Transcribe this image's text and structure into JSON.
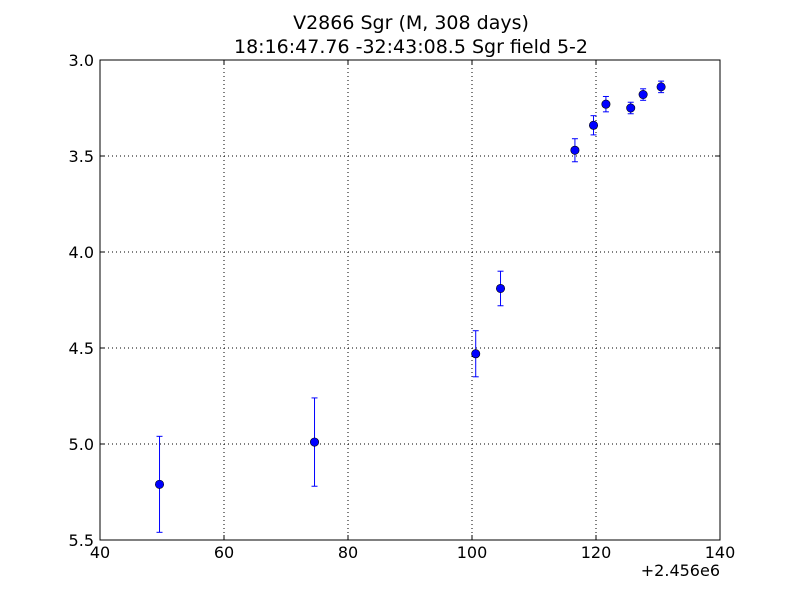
{
  "chart_data": {
    "type": "scatter",
    "title": "V2866 Sgr  (M, 308 days)",
    "subtitle": "18:16:47.76 -32:43:08.5 Sgr field 5-2",
    "xlabel": "",
    "ylabel": "",
    "x_offset_label": "+2.456e6",
    "xlim": [
      40,
      140
    ],
    "ylim": [
      5.5,
      3.0
    ],
    "y_inverted": true,
    "grid": true,
    "x_ticks": [
      40,
      60,
      80,
      100,
      120,
      140
    ],
    "x_tick_labels": [
      "40",
      "60",
      "80",
      "100",
      "120",
      "140"
    ],
    "y_ticks": [
      3.0,
      3.5,
      4.0,
      4.5,
      5.0,
      5.5
    ],
    "y_tick_labels": [
      "3.0",
      "3.5",
      "4.0",
      "4.5",
      "5.0",
      "5.5"
    ],
    "marker_color": "#0000ff",
    "points": [
      {
        "x": 49.6,
        "y": 5.21,
        "err": 0.25
      },
      {
        "x": 74.6,
        "y": 4.99,
        "err": 0.23
      },
      {
        "x": 100.6,
        "y": 4.53,
        "err": 0.12
      },
      {
        "x": 104.6,
        "y": 4.19,
        "err": 0.09
      },
      {
        "x": 116.6,
        "y": 3.47,
        "err": 0.06
      },
      {
        "x": 119.6,
        "y": 3.34,
        "err": 0.05
      },
      {
        "x": 121.6,
        "y": 3.23,
        "err": 0.04
      },
      {
        "x": 125.6,
        "y": 3.25,
        "err": 0.03
      },
      {
        "x": 127.6,
        "y": 3.18,
        "err": 0.03
      },
      {
        "x": 130.5,
        "y": 3.14,
        "err": 0.03
      }
    ]
  }
}
